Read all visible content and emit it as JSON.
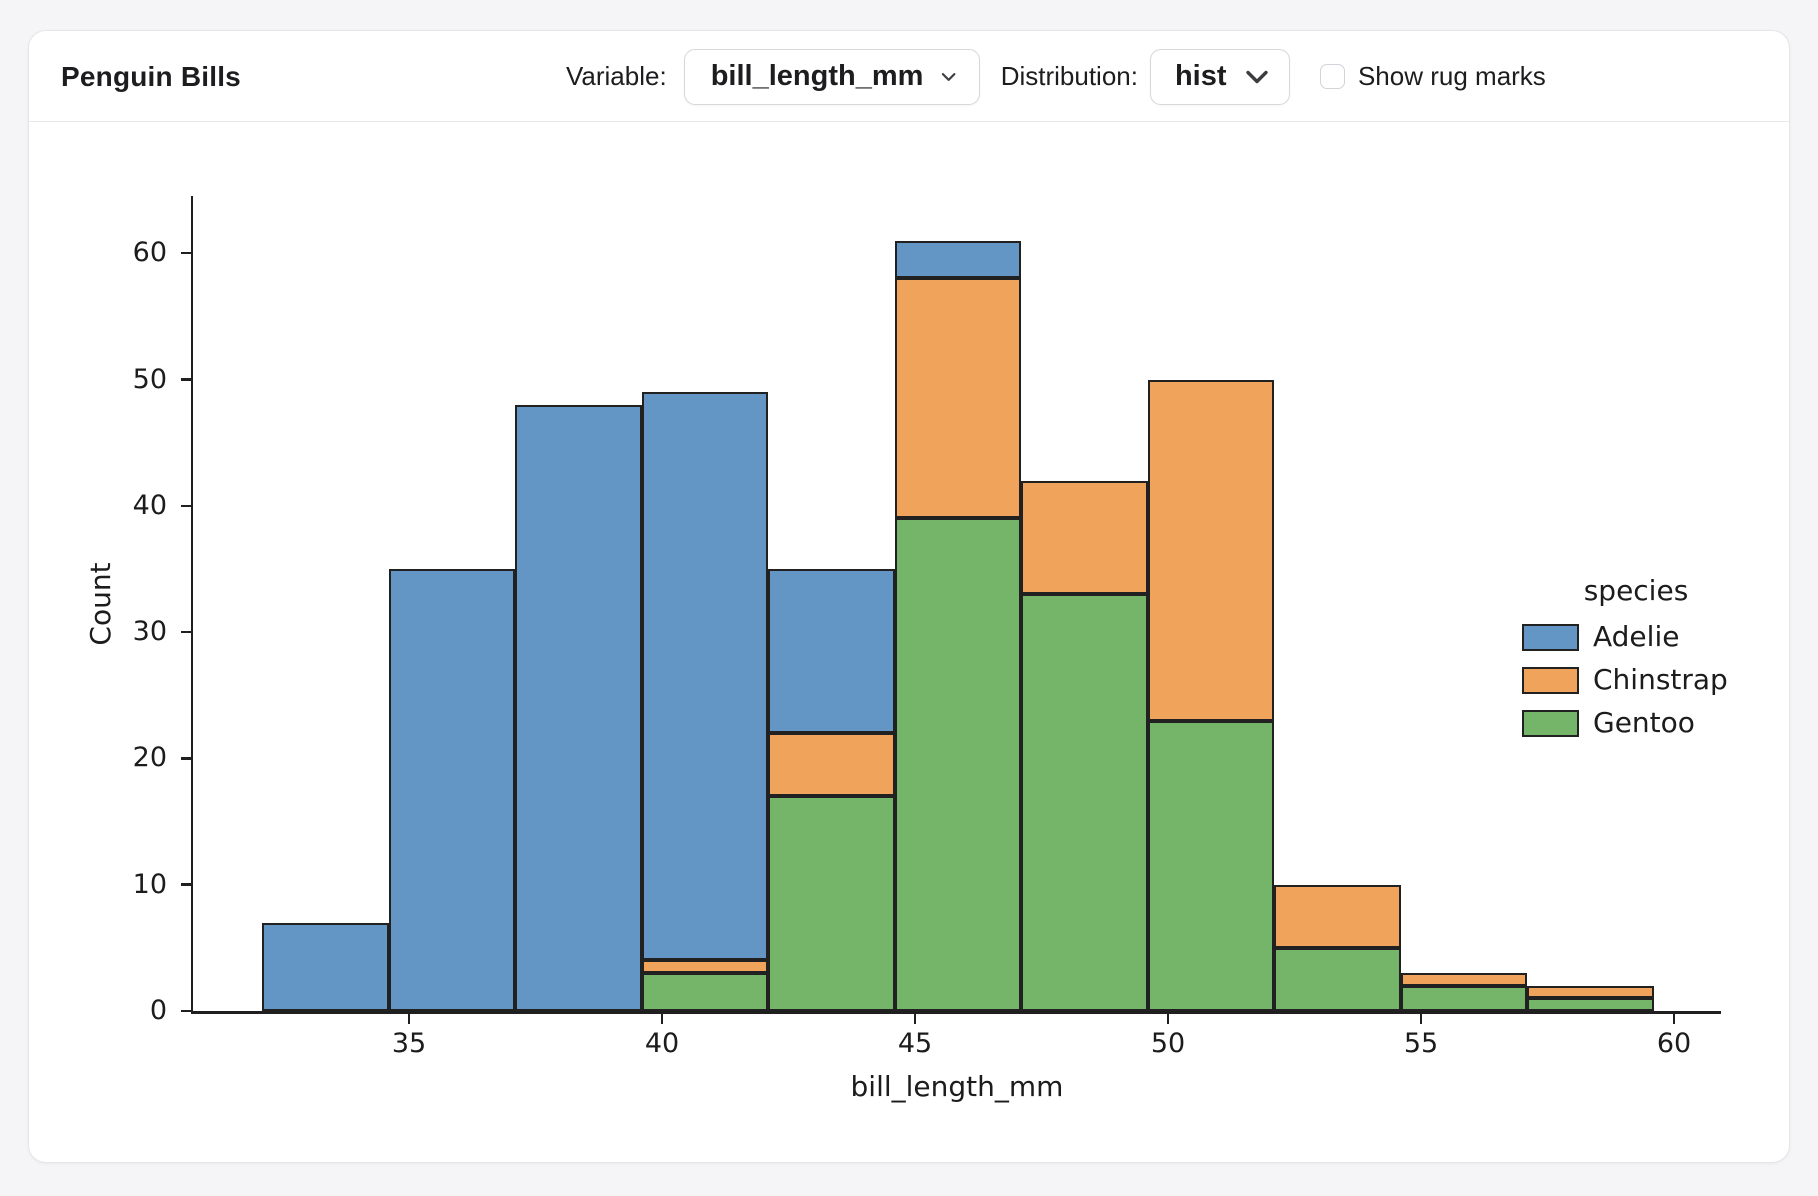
{
  "header": {
    "title": "Penguin Bills",
    "variable_label": "Variable:",
    "variable_value": "bill_length_mm",
    "distribution_label": "Distribution:",
    "distribution_value": "hist",
    "rug_label": "Show rug marks",
    "rug_checked": false
  },
  "chart_data": {
    "type": "bar",
    "subtype": "stacked-histogram",
    "title": "",
    "xlabel": "bill_length_mm",
    "ylabel": "Count",
    "bin_edges": [
      32.1,
      34.6,
      37.1,
      39.6,
      42.1,
      44.6,
      47.1,
      49.6,
      52.1,
      54.6,
      57.1,
      59.6
    ],
    "series": [
      {
        "name": "Adelie",
        "color": "#6496C5",
        "values": [
          7,
          35,
          48,
          45,
          13,
          3,
          0,
          0,
          0,
          0,
          0
        ]
      },
      {
        "name": "Chinstrap",
        "color": "#F0A45B",
        "values": [
          0,
          0,
          0,
          1,
          5,
          19,
          9,
          27,
          5,
          1,
          1
        ]
      },
      {
        "name": "Gentoo",
        "color": "#74B56A",
        "values": [
          0,
          0,
          0,
          3,
          17,
          39,
          33,
          23,
          5,
          2,
          1
        ]
      }
    ],
    "stacked": true,
    "stack_order_bottom_to_top": [
      "Gentoo",
      "Chinstrap",
      "Adelie"
    ],
    "bin_totals": [
      7,
      35,
      48,
      49,
      35,
      61,
      42,
      50,
      10,
      3,
      2
    ],
    "x_ticks": [
      35,
      40,
      45,
      50,
      55,
      60
    ],
    "y_ticks": [
      0,
      10,
      20,
      30,
      40,
      50,
      60
    ],
    "xlim": [
      30.7,
      60.9
    ],
    "ylim": [
      0,
      64.5
    ],
    "grid": false,
    "legend": {
      "title": "species",
      "entries": [
        "Adelie",
        "Chinstrap",
        "Gentoo"
      ],
      "position": "right"
    },
    "edge_color": "#212121"
  }
}
